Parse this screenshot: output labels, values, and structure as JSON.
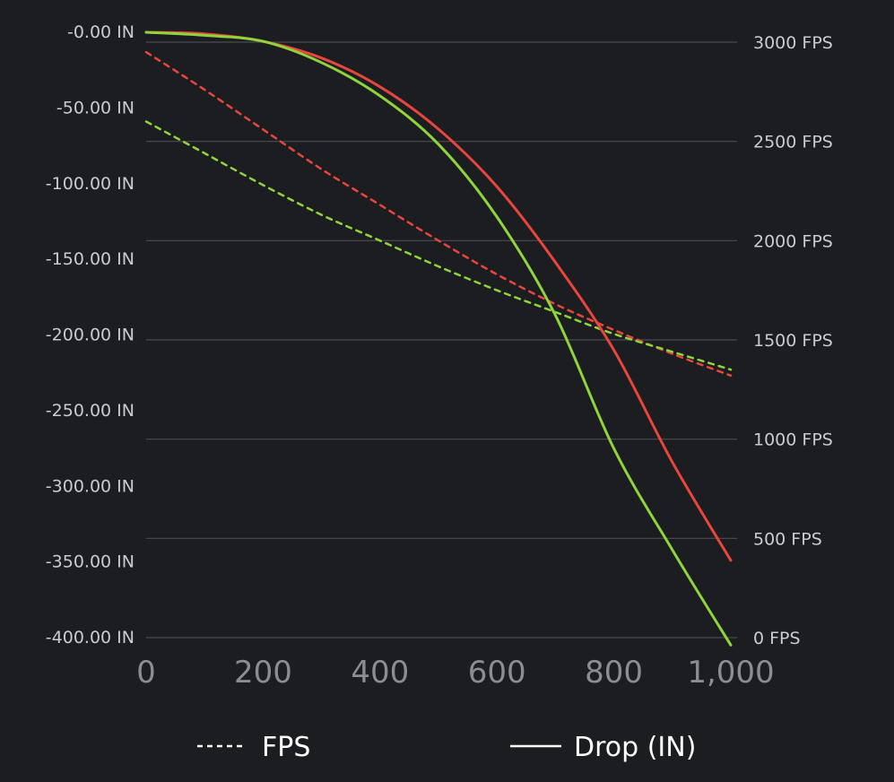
{
  "chart_data": {
    "type": "line",
    "x_ticks": [
      "0",
      "200",
      "400",
      "600",
      "800",
      "1,000"
    ],
    "x_values": [
      0,
      200,
      400,
      600,
      800,
      1000
    ],
    "xlim": [
      0,
      1000
    ],
    "left_axis": {
      "ticks": [
        "-0.00 IN",
        "-50.00 IN",
        "-100.00 IN",
        "-150.00 IN",
        "-200.00 IN",
        "-250.00 IN",
        "-300.00 IN",
        "-350.00 IN",
        "-400.00 IN"
      ],
      "tick_values": [
        0,
        -50,
        -100,
        -150,
        -200,
        -250,
        -300,
        -350,
        -400
      ],
      "ylim": [
        -400,
        0
      ]
    },
    "right_axis": {
      "ticks": [
        "3000 FPS",
        "2500 FPS",
        "2000 FPS",
        "1500 FPS",
        "1000 FPS",
        "500 FPS",
        "0 FPS"
      ],
      "tick_values": [
        3000,
        2500,
        2000,
        1500,
        1000,
        500,
        0
      ],
      "ylim": [
        0,
        3000
      ]
    },
    "grid": true,
    "legend": [
      {
        "label": "FPS",
        "style": "dashed"
      },
      {
        "label": "Drop (IN)",
        "style": "solid"
      }
    ],
    "series": [
      {
        "axis": "left",
        "style": "solid",
        "color": "#e8453c",
        "x": [
          0,
          100,
          200,
          300,
          400,
          500,
          600,
          700,
          800,
          900,
          1000
        ],
        "y": [
          0,
          -1,
          -6,
          -17,
          -36,
          -64,
          -102,
          -152,
          -210,
          -284,
          -349
        ]
      },
      {
        "axis": "left",
        "style": "solid",
        "color": "#8fd43a",
        "x": [
          0,
          100,
          200,
          300,
          400,
          500,
          600,
          700,
          800,
          900,
          1000
        ],
        "y": [
          0,
          -2,
          -6,
          -20,
          -42,
          -74,
          -122,
          -187,
          -275,
          -342,
          -405
        ]
      },
      {
        "axis": "right",
        "style": "dashed",
        "color": "#e8453c",
        "x": [
          0,
          100,
          200,
          300,
          400,
          500,
          600,
          700,
          800,
          900,
          1000
        ],
        "y": [
          2950,
          2760,
          2560,
          2360,
          2180,
          2000,
          1830,
          1680,
          1550,
          1430,
          1320
        ]
      },
      {
        "axis": "right",
        "style": "dashed",
        "color": "#8fd43a",
        "x": [
          0,
          100,
          200,
          300,
          400,
          500,
          600,
          700,
          800,
          900,
          1000
        ],
        "y": [
          2600,
          2440,
          2280,
          2130,
          2000,
          1870,
          1750,
          1640,
          1530,
          1440,
          1350
        ]
      }
    ]
  }
}
